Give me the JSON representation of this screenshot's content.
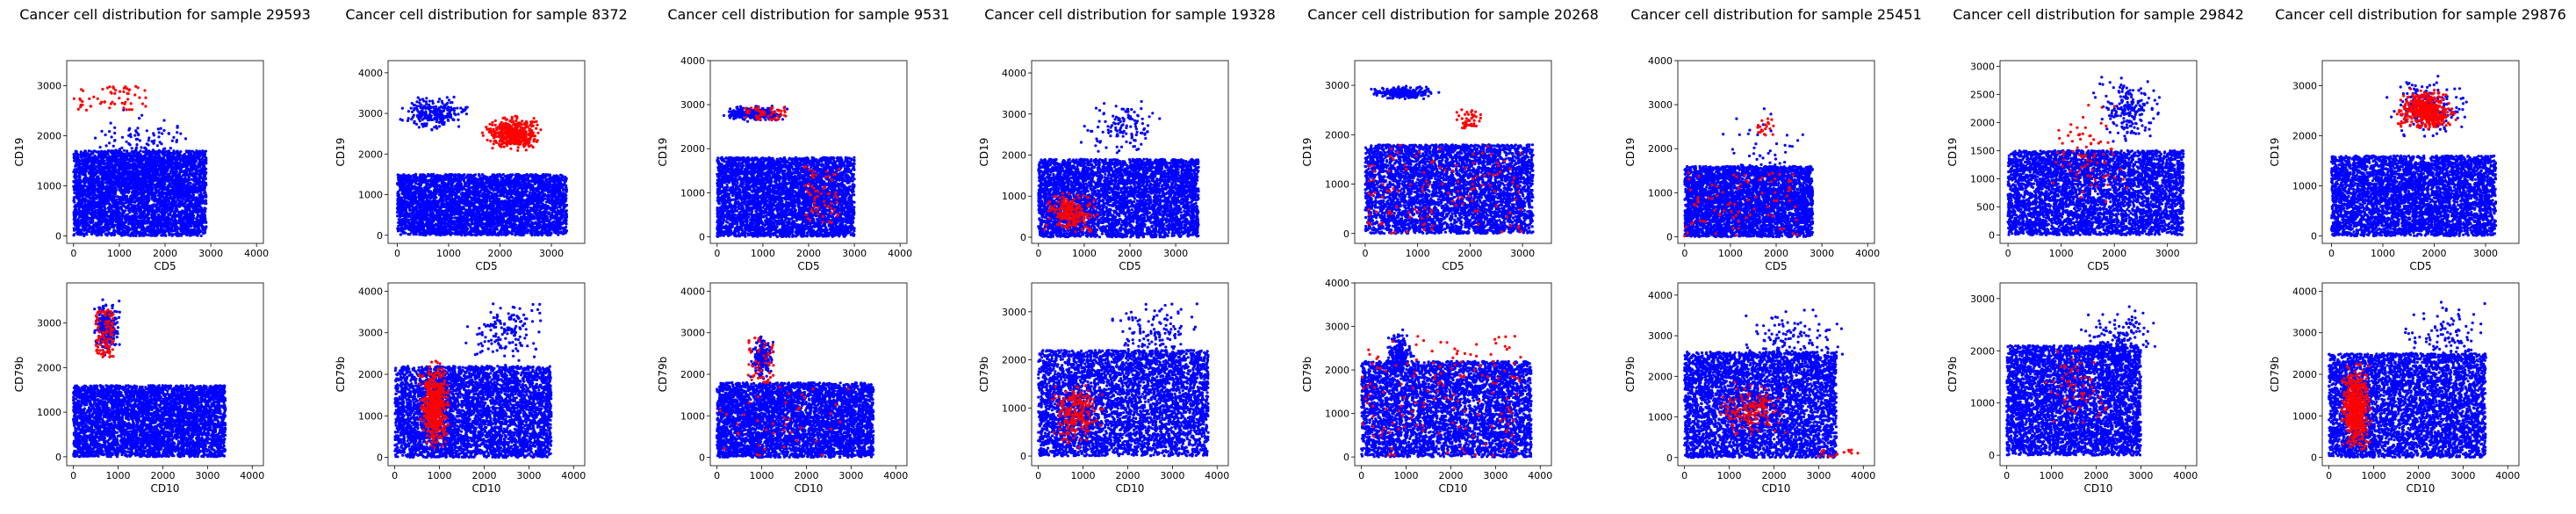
{
  "colors": {
    "normal": "#0000ff",
    "cancer": "#ff0000"
  },
  "chart_data": [
    {
      "type": "scatter",
      "title": "Cancer cell distribution for sample 29593",
      "xlabel": "CD5",
      "ylabel": "CD19",
      "xlim": [
        -150,
        4150
      ],
      "ylim": [
        -150,
        3500
      ],
      "xticks": [
        0,
        1000,
        2000,
        3000,
        4000
      ],
      "yticks": [
        0,
        1000,
        2000,
        3000
      ],
      "normal_clusters": [
        [
          0,
          2900,
          150,
          2700,
          350,
          90
        ],
        [
          0,
          2900,
          0,
          1700,
          4500,
          40
        ]
      ],
      "cancer_clusters": [
        [
          0,
          1600,
          2500,
          3000,
          60,
          40
        ]
      ]
    },
    {
      "type": "scatter",
      "title": "Cancer cell distribution for sample 8372",
      "xlabel": "CD5",
      "ylabel": "CD19",
      "xlim": [
        -180,
        3650
      ],
      "ylim": [
        -200,
        4300
      ],
      "xticks": [
        0,
        1000,
        2000,
        3000
      ],
      "yticks": [
        0,
        1000,
        2000,
        3000,
        4000
      ],
      "normal_clusters": [
        [
          0,
          3300,
          0,
          1500,
          4500,
          40
        ],
        [
          0,
          1500,
          2500,
          3500,
          250,
          60
        ]
      ],
      "cancer_clusters": [
        [
          1600,
          2900,
          2000,
          3000,
          450,
          70
        ]
      ]
    },
    {
      "type": "scatter",
      "title": "Cancer cell distribution for sample 9531",
      "xlabel": "CD5",
      "ylabel": "CD19",
      "xlim": [
        -150,
        4150
      ],
      "ylim": [
        -150,
        4000
      ],
      "xticks": [
        0,
        1000,
        2000,
        3000,
        4000
      ],
      "yticks": [
        0,
        1000,
        2000,
        3000,
        4000
      ],
      "normal_clusters": [
        [
          0,
          3000,
          0,
          1800,
          4500,
          40
        ],
        [
          0,
          1600,
          2600,
          3000,
          300,
          80
        ]
      ],
      "cancer_clusters": [
        [
          600,
          1500,
          2650,
          2950,
          50,
          40
        ],
        [
          1900,
          2700,
          300,
          1600,
          60,
          40
        ]
      ]
    },
    {
      "type": "scatter",
      "title": "Cancer cell distribution for sample 19328",
      "xlabel": "CD5",
      "ylabel": "CD19",
      "xlim": [
        -150,
        4150
      ],
      "ylim": [
        -150,
        4300
      ],
      "xticks": [
        0,
        1000,
        2000,
        3000
      ],
      "yticks": [
        0,
        1000,
        2000,
        3000,
        4000
      ],
      "normal_clusters": [
        [
          0,
          3500,
          0,
          1900,
          4500,
          40
        ],
        [
          800,
          2800,
          1800,
          3500,
          120,
          80
        ]
      ],
      "cancer_clusters": [
        [
          0,
          1400,
          0,
          1200,
          200,
          60
        ]
      ]
    },
    {
      "type": "scatter",
      "title": "Cancer cell distribution for sample 20268",
      "xlabel": "CD5",
      "ylabel": "CD19",
      "xlim": [
        -200,
        3550
      ],
      "ylim": [
        -200,
        3500
      ],
      "xticks": [
        0,
        1000,
        2000,
        3000
      ],
      "yticks": [
        0,
        1000,
        2000,
        3000
      ],
      "normal_clusters": [
        [
          0,
          3200,
          0,
          1800,
          4500,
          40
        ],
        [
          0,
          1500,
          2700,
          3000,
          250,
          80
        ]
      ],
      "cancer_clusters": [
        [
          0,
          3000,
          0,
          1800,
          120,
          40
        ],
        [
          1700,
          2300,
          2000,
          2700,
          40,
          50
        ]
      ]
    },
    {
      "type": "scatter",
      "title": "Cancer cell distribution for sample 25451",
      "xlabel": "CD5",
      "ylabel": "CD19",
      "xlim": [
        -150,
        4150
      ],
      "ylim": [
        -150,
        4000
      ],
      "xticks": [
        0,
        1000,
        2000,
        3000,
        4000
      ],
      "yticks": [
        0,
        1000,
        2000,
        3000,
        4000
      ],
      "normal_clusters": [
        [
          0,
          2800,
          0,
          1600,
          4000,
          40
        ],
        [
          500,
          3000,
          0,
          3000,
          100,
          80
        ]
      ],
      "cancer_clusters": [
        [
          0,
          2500,
          0,
          1500,
          80,
          40
        ],
        [
          1500,
          2000,
          2300,
          2700,
          20,
          40
        ]
      ]
    },
    {
      "type": "scatter",
      "title": "Cancer cell distribution for sample 29842",
      "xlabel": "CD5",
      "ylabel": "CD19",
      "xlim": [
        -150,
        3550
      ],
      "ylim": [
        -150,
        3100
      ],
      "xticks": [
        0,
        1000,
        2000,
        3000
      ],
      "yticks": [
        0,
        500,
        1000,
        1500,
        2000,
        2500,
        3000
      ],
      "normal_clusters": [
        [
          0,
          3300,
          0,
          1500,
          4500,
          40
        ],
        [
          1500,
          3000,
          1500,
          3000,
          200,
          80
        ]
      ],
      "cancer_clusters": [
        [
          500,
          2500,
          300,
          2500,
          80,
          50
        ]
      ]
    },
    {
      "type": "scatter",
      "title": "Cancer cell distribution for sample 29876",
      "xlabel": "CD5",
      "ylabel": "CD19",
      "xlim": [
        -180,
        3650
      ],
      "ylim": [
        -150,
        3500
      ],
      "xticks": [
        0,
        1000,
        2000,
        3000
      ],
      "yticks": [
        0,
        1000,
        2000,
        3000
      ],
      "normal_clusters": [
        [
          0,
          3200,
          0,
          1600,
          4500,
          40
        ],
        [
          1000,
          2800,
          1800,
          3300,
          200,
          80
        ]
      ],
      "cancer_clusters": [
        [
          1200,
          2500,
          2000,
          3000,
          450,
          70
        ]
      ]
    },
    {
      "type": "scatter",
      "title": "",
      "xlabel": "CD10",
      "ylabel": "CD79b",
      "xlim": [
        -150,
        4250
      ],
      "ylim": [
        -200,
        3900
      ],
      "xticks": [
        0,
        1000,
        2000,
        3000,
        4000
      ],
      "yticks": [
        0,
        1000,
        2000,
        3000
      ],
      "normal_clusters": [
        [
          0,
          3400,
          0,
          1600,
          4500,
          40
        ],
        [
          400,
          1100,
          2200,
          3600,
          250,
          70
        ]
      ],
      "cancer_clusters": [
        [
          500,
          900,
          2200,
          3300,
          100,
          45
        ]
      ]
    },
    {
      "type": "scatter",
      "title": "",
      "xlabel": "CD10",
      "ylabel": "CD79b",
      "xlim": [
        -150,
        4250
      ],
      "ylim": [
        -200,
        4200
      ],
      "xticks": [
        0,
        1000,
        2000,
        3000,
        4000
      ],
      "yticks": [
        0,
        1000,
        2000,
        3000,
        4000
      ],
      "normal_clusters": [
        [
          0,
          3500,
          0,
          2200,
          4500,
          40
        ],
        [
          1500,
          3500,
          2000,
          4000,
          150,
          80
        ]
      ],
      "cancer_clusters": [
        [
          500,
          1300,
          100,
          2400,
          500,
          60
        ]
      ]
    },
    {
      "type": "scatter",
      "title": "",
      "xlabel": "CD10",
      "ylabel": "CD79b",
      "xlim": [
        -150,
        4250
      ],
      "ylim": [
        -200,
        4200
      ],
      "xticks": [
        0,
        1000,
        2000,
        3000,
        4000
      ],
      "yticks": [
        0,
        1000,
        2000,
        3000,
        4000
      ],
      "normal_clusters": [
        [
          0,
          3500,
          0,
          1800,
          4500,
          40
        ],
        [
          700,
          1300,
          1800,
          3000,
          200,
          70
        ]
      ],
      "cancer_clusters": [
        [
          700,
          1300,
          1800,
          2900,
          50,
          45
        ],
        [
          0,
          3000,
          0,
          1700,
          40,
          40
        ]
      ]
    },
    {
      "type": "scatter",
      "title": "",
      "xlabel": "CD10",
      "ylabel": "CD79b",
      "xlim": [
        -150,
        4250
      ],
      "ylim": [
        -200,
        3600
      ],
      "xticks": [
        0,
        1000,
        2000,
        3000,
        4000
      ],
      "yticks": [
        0,
        1000,
        2000,
        3000
      ],
      "normal_clusters": [
        [
          0,
          3800,
          0,
          2200,
          4500,
          40
        ],
        [
          1500,
          3800,
          1500,
          3500,
          150,
          80
        ]
      ],
      "cancer_clusters": [
        [
          200,
          1500,
          100,
          1700,
          200,
          60
        ]
      ]
    },
    {
      "type": "scatter",
      "title": "",
      "xlabel": "CD10",
      "ylabel": "CD79b",
      "xlim": [
        -150,
        4250
      ],
      "ylim": [
        -200,
        4000
      ],
      "xticks": [
        0,
        1000,
        2000,
        3000,
        4000
      ],
      "yticks": [
        0,
        1000,
        2000,
        3000,
        4000
      ],
      "normal_clusters": [
        [
          0,
          3800,
          0,
          2200,
          4500,
          40
        ],
        [
          500,
          1200,
          1800,
          3000,
          200,
          70
        ]
      ],
      "cancer_clusters": [
        [
          0,
          3600,
          0,
          2800,
          150,
          40
        ]
      ]
    },
    {
      "type": "scatter",
      "title": "",
      "xlabel": "CD10",
      "ylabel": "CD79b",
      "xlim": [
        -150,
        4250
      ],
      "ylim": [
        -200,
        4300
      ],
      "xticks": [
        0,
        1000,
        2000,
        3000,
        4000
      ],
      "yticks": [
        0,
        1000,
        2000,
        3000,
        4000
      ],
      "normal_clusters": [
        [
          0,
          3400,
          0,
          2600,
          4500,
          40
        ],
        [
          1000,
          3800,
          1500,
          4000,
          150,
          80
        ]
      ],
      "cancer_clusters": [
        [
          500,
          2500,
          300,
          2000,
          150,
          50
        ],
        [
          3000,
          4000,
          0,
          200,
          15,
          40
        ]
      ]
    },
    {
      "type": "scatter",
      "title": "",
      "xlabel": "CD10",
      "ylabel": "CD79b",
      "xlim": [
        -150,
        4250
      ],
      "ylim": [
        -200,
        3300
      ],
      "xticks": [
        0,
        1000,
        2000,
        3000,
        4000
      ],
      "yticks": [
        0,
        1000,
        2000,
        3000
      ],
      "normal_clusters": [
        [
          0,
          3000,
          0,
          2100,
          4500,
          40
        ],
        [
          1500,
          3500,
          1500,
          3000,
          150,
          80
        ]
      ],
      "cancer_clusters": [
        [
          500,
          2500,
          300,
          2200,
          60,
          50
        ]
      ]
    },
    {
      "type": "scatter",
      "title": "",
      "xlabel": "CD10",
      "ylabel": "CD79b",
      "xlim": [
        -150,
        4250
      ],
      "ylim": [
        -200,
        4200
      ],
      "xticks": [
        0,
        1000,
        2000,
        3000,
        4000
      ],
      "yticks": [
        0,
        1000,
        2000,
        3000,
        4000
      ],
      "normal_clusters": [
        [
          0,
          3500,
          0,
          2500,
          4500,
          40
        ],
        [
          1500,
          3800,
          1500,
          4000,
          150,
          80
        ]
      ],
      "cancer_clusters": [
        [
          200,
          1000,
          0,
          2400,
          600,
          60
        ]
      ]
    }
  ]
}
